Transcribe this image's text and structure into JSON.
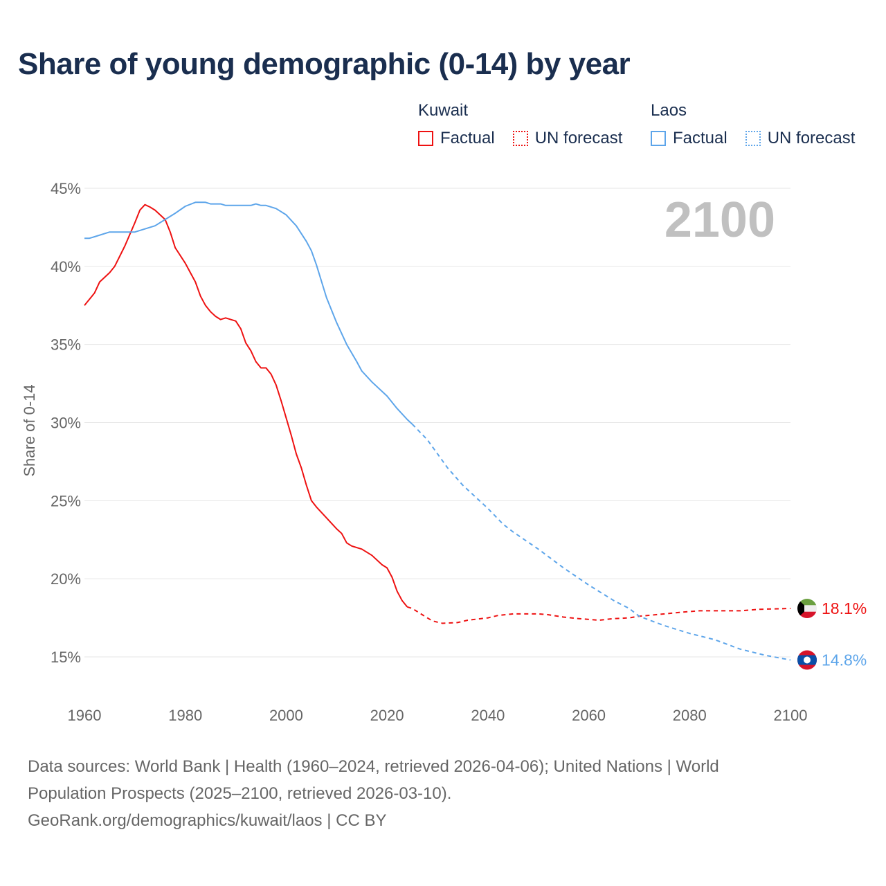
{
  "title": "Share of young demographic (0-14) by year",
  "legend": {
    "groups": [
      {
        "name": "Kuwait",
        "color": "#ee1111",
        "factual": "Factual",
        "forecast": "UN forecast"
      },
      {
        "name": "Laos",
        "color": "#5da5ea",
        "factual": "Factual",
        "forecast": "UN forecast"
      }
    ]
  },
  "year_label": "2100",
  "source_lines": [
    "Data sources: World Bank | Health (1960–2024, retrieved 2026-04-06); United Nations | World",
    "Population Prospects (2025–2100, retrieved 2026-03-10).",
    "GeoRank.org/demographics/kuwait/laos | CC BY"
  ],
  "chart_data": {
    "type": "line",
    "title": "Share of young demographic (0-14) by year",
    "xlabel": "",
    "ylabel": "Share of 0-14",
    "xlim": [
      1960,
      2100
    ],
    "ylim": [
      15,
      45
    ],
    "xticks": [
      "1960",
      "1980",
      "2000",
      "2020",
      "2040",
      "2060",
      "2080",
      "2100"
    ],
    "yticks": [
      "15%",
      "20%",
      "25%",
      "30%",
      "35%",
      "40%",
      "45%"
    ],
    "grid": true,
    "legend_placement": "top-right",
    "series": [
      {
        "name": "Kuwait",
        "type": "Factual",
        "color": "#ee1111",
        "dashed": false,
        "x": [
          1960,
          1961,
          1962,
          1963,
          1965,
          1966,
          1968,
          1970,
          1971,
          1972,
          1973,
          1974,
          1976,
          1977,
          1978,
          1980,
          1981,
          1982,
          1983,
          1984,
          1985,
          1986,
          1987,
          1988,
          1990,
          1991,
          1992,
          1993,
          1994,
          1995,
          1996,
          1997,
          1998,
          1999,
          2000,
          2001,
          2002,
          2003,
          2004,
          2005,
          2006,
          2008,
          2010,
          2011,
          2012,
          2013,
          2015,
          2017,
          2019,
          2020,
          2021,
          2022,
          2023,
          2024
        ],
        "y": [
          37.5,
          37.9,
          38.3,
          39.0,
          39.6,
          40.0,
          41.3,
          42.8,
          43.6,
          43.95,
          43.8,
          43.6,
          43.0,
          42.2,
          41.2,
          40.2,
          39.6,
          39.0,
          38.1,
          37.5,
          37.1,
          36.8,
          36.6,
          36.7,
          36.5,
          36.0,
          35.1,
          34.6,
          33.9,
          33.5,
          33.5,
          33.1,
          32.4,
          31.4,
          30.3,
          29.2,
          28.0,
          27.1,
          26.0,
          25.0,
          24.6,
          23.9,
          23.2,
          22.9,
          22.3,
          22.1,
          21.9,
          21.5,
          20.9,
          20.7,
          20.1,
          19.2,
          18.6,
          18.2
        ]
      },
      {
        "name": "Kuwait",
        "type": "UN forecast",
        "color": "#ee1111",
        "dashed": true,
        "x": [
          2024,
          2025,
          2027,
          2029,
          2031,
          2034,
          2036,
          2040,
          2042,
          2045,
          2050,
          2052,
          2055,
          2058,
          2062,
          2065,
          2068,
          2070,
          2075,
          2078,
          2082,
          2090,
          2094,
          2100
        ],
        "y": [
          18.2,
          18.1,
          17.7,
          17.3,
          17.15,
          17.2,
          17.35,
          17.5,
          17.65,
          17.75,
          17.75,
          17.7,
          17.55,
          17.45,
          17.35,
          17.45,
          17.5,
          17.6,
          17.75,
          17.85,
          17.95,
          17.95,
          18.05,
          18.1
        ]
      },
      {
        "name": "Laos",
        "type": "Factual",
        "color": "#5da5ea",
        "dashed": false,
        "x": [
          1960,
          1961,
          1962,
          1965,
          1970,
          1972,
          1974,
          1976,
          1978,
          1980,
          1982,
          1984,
          1985,
          1987,
          1988,
          1993,
          1994,
          1995,
          1996,
          1998,
          2000,
          2002,
          2004,
          2005,
          2006,
          2008,
          2010,
          2012,
          2014,
          2015,
          2017,
          2020,
          2022,
          2024,
          2025
        ],
        "y": [
          41.8,
          41.8,
          41.9,
          42.2,
          42.2,
          42.4,
          42.6,
          43.0,
          43.4,
          43.85,
          44.1,
          44.1,
          44.0,
          44.0,
          43.9,
          43.9,
          44.0,
          43.9,
          43.9,
          43.7,
          43.3,
          42.6,
          41.6,
          41.0,
          40.1,
          38.0,
          36.4,
          35.0,
          33.9,
          33.3,
          32.6,
          31.7,
          30.9,
          30.2,
          29.9
        ]
      },
      {
        "name": "Laos",
        "type": "UN forecast",
        "color": "#5da5ea",
        "dashed": true,
        "x": [
          2025,
          2028,
          2030,
          2032,
          2035,
          2040,
          2043,
          2045,
          2050,
          2055,
          2060,
          2065,
          2068,
          2070,
          2075,
          2080,
          2085,
          2090,
          2095,
          2100
        ],
        "y": [
          29.9,
          28.9,
          28.0,
          27.1,
          26.0,
          24.5,
          23.5,
          23.0,
          21.9,
          20.7,
          19.6,
          18.6,
          18.1,
          17.6,
          17.0,
          16.5,
          16.1,
          15.5,
          15.1,
          14.8
        ]
      }
    ],
    "end_labels": [
      {
        "country": "Kuwait",
        "value": 18.1,
        "text": "18.1%",
        "color": "#ee1111"
      },
      {
        "country": "Laos",
        "value": 14.8,
        "text": "14.8%",
        "color": "#5da5ea"
      }
    ]
  }
}
